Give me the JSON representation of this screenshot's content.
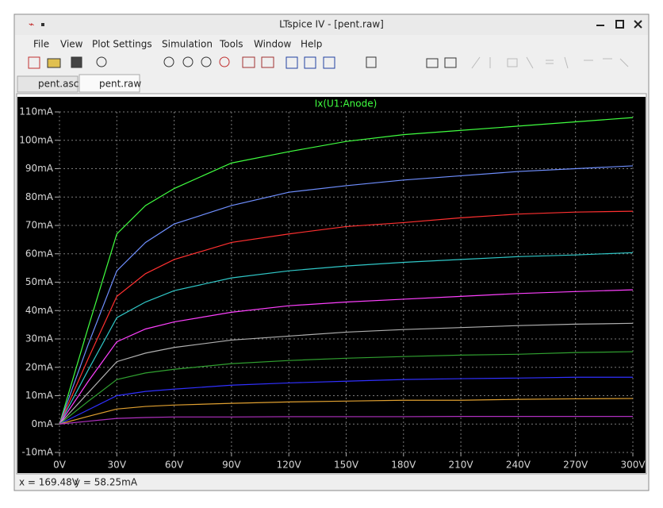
{
  "window": {
    "title": "LTspice IV - [pent.raw]",
    "menu": [
      "File",
      "View",
      "Plot Settings",
      "Simulation",
      "Tools",
      "Window",
      "Help"
    ],
    "tabs": [
      "pent.asc",
      "pent.raw"
    ],
    "status": {
      "x": "x = 169.48V",
      "y": "y = 58.25mA"
    }
  },
  "chart_data": {
    "type": "line",
    "title": "Ix(U1:Anode)",
    "x": [
      0,
      15,
      30,
      45,
      60,
      90,
      120,
      150,
      180,
      210,
      240,
      270,
      300
    ],
    "series": [
      {
        "color": "#40ff40",
        "values": [
          0,
          34,
          67,
          77,
          83,
          92,
          96,
          99.6,
          102,
          103.5,
          105,
          106.5,
          108
        ]
      },
      {
        "color": "#6f8fff",
        "values": [
          0,
          28,
          54,
          64,
          70.5,
          77,
          81.7,
          84,
          86,
          87.5,
          89,
          90,
          91
        ]
      },
      {
        "color": "#ff3030",
        "values": [
          0,
          23,
          45,
          53,
          58,
          64,
          67,
          69.6,
          71,
          72.7,
          74,
          74.7,
          75
        ]
      },
      {
        "color": "#30c8c8",
        "values": [
          0,
          19,
          37.5,
          43,
          47,
          51.5,
          54,
          55.7,
          57,
          58,
          59,
          59.6,
          60.4
        ]
      },
      {
        "color": "#ff40ff",
        "values": [
          0,
          15,
          29,
          33.5,
          36,
          39.4,
          41.7,
          43,
          44,
          45,
          46,
          46.7,
          47.3
        ]
      },
      {
        "color": "#b0b0b0",
        "values": [
          0,
          11,
          22,
          25,
          27,
          29.6,
          31,
          32.4,
          33.3,
          34,
          34.7,
          35.2,
          35.5
        ]
      },
      {
        "color": "#30a030",
        "values": [
          0,
          8,
          15.7,
          18,
          19.3,
          21.3,
          22.4,
          23.2,
          23.8,
          24.3,
          24.6,
          25.2,
          25.5
        ]
      },
      {
        "color": "#3030ff",
        "values": [
          0,
          5,
          10,
          11.5,
          12.3,
          13.7,
          14.5,
          15.1,
          15.7,
          16,
          16.2,
          16.5,
          16.5
        ]
      },
      {
        "color": "#e0a030",
        "values": [
          0,
          2.7,
          5.3,
          6.2,
          6.7,
          7.3,
          7.8,
          8.1,
          8.4,
          8.4,
          8.7,
          8.9,
          9
        ]
      },
      {
        "color": "#b030c0",
        "values": [
          0,
          1,
          2,
          2.3,
          2.5,
          2.5,
          2.6,
          2.6,
          2.6,
          2.7,
          2.7,
          2.7,
          2.7
        ]
      }
    ],
    "xlim": [
      0,
      300
    ],
    "xticks": [
      {
        "value": 0,
        "label": "0V"
      },
      {
        "value": 30,
        "label": "30V"
      },
      {
        "value": 60,
        "label": "60V"
      },
      {
        "value": 90,
        "label": "90V"
      },
      {
        "value": 120,
        "label": "120V"
      },
      {
        "value": 150,
        "label": "150V"
      },
      {
        "value": 180,
        "label": "180V"
      },
      {
        "value": 210,
        "label": "210V"
      },
      {
        "value": 240,
        "label": "240V"
      },
      {
        "value": 270,
        "label": "270V"
      },
      {
        "value": 300,
        "label": "300V"
      }
    ],
    "ylim": [
      -10,
      110
    ],
    "yticks": [
      {
        "value": -10,
        "label": "-10mA"
      },
      {
        "value": 0,
        "label": "0mA"
      },
      {
        "value": 10,
        "label": "10mA"
      },
      {
        "value": 20,
        "label": "20mA"
      },
      {
        "value": 30,
        "label": "30mA"
      },
      {
        "value": 40,
        "label": "40mA"
      },
      {
        "value": 50,
        "label": "50mA"
      },
      {
        "value": 60,
        "label": "60mA"
      },
      {
        "value": 70,
        "label": "70mA"
      },
      {
        "value": 80,
        "label": "80mA"
      },
      {
        "value": 90,
        "label": "90mA"
      },
      {
        "value": 100,
        "label": "100mA"
      },
      {
        "value": 110,
        "label": "110mA"
      }
    ],
    "grid": true
  }
}
